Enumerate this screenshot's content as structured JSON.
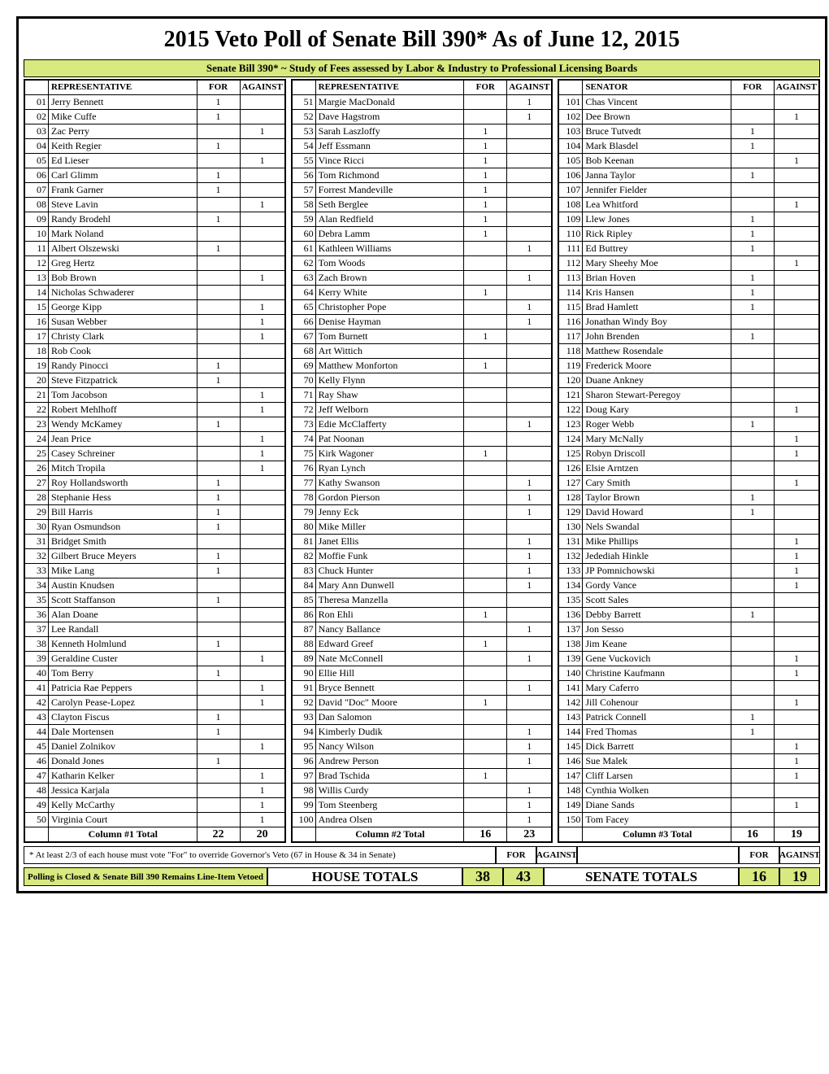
{
  "title": "2015 Veto Poll of Senate Bill 390* As of June 12, 2015",
  "subtitle": "Senate Bill 390*  ~  Study of Fees assessed by Labor & Industry to Professional Licensing Boards",
  "headers": {
    "rep": "REPRESENTATIVE",
    "sen": "SENATOR",
    "for": "FOR",
    "against": "AGAINST"
  },
  "col1": {
    "rows": [
      {
        "n": "01",
        "name": "Jerry Bennett",
        "f": "1",
        "a": ""
      },
      {
        "n": "02",
        "name": "Mike Cuffe",
        "f": "1",
        "a": ""
      },
      {
        "n": "03",
        "name": "Zac Perry",
        "f": "",
        "a": "1"
      },
      {
        "n": "04",
        "name": "Keith Regier",
        "f": "1",
        "a": ""
      },
      {
        "n": "05",
        "name": "Ed Lieser",
        "f": "",
        "a": "1"
      },
      {
        "n": "06",
        "name": "Carl Glimm",
        "f": "1",
        "a": ""
      },
      {
        "n": "07",
        "name": "Frank Garner",
        "f": "1",
        "a": ""
      },
      {
        "n": "08",
        "name": "Steve Lavin",
        "f": "",
        "a": "1"
      },
      {
        "n": "09",
        "name": "Randy Brodehl",
        "f": "1",
        "a": ""
      },
      {
        "n": "10",
        "name": "Mark Noland",
        "f": "",
        "a": ""
      },
      {
        "n": "11",
        "name": "Albert Olszewski",
        "f": "1",
        "a": ""
      },
      {
        "n": "12",
        "name": "Greg Hertz",
        "f": "",
        "a": ""
      },
      {
        "n": "13",
        "name": "Bob Brown",
        "f": "",
        "a": "1"
      },
      {
        "n": "14",
        "name": "Nicholas Schwaderer",
        "f": "",
        "a": ""
      },
      {
        "n": "15",
        "name": "George Kipp",
        "f": "",
        "a": "1"
      },
      {
        "n": "16",
        "name": "Susan Webber",
        "f": "",
        "a": "1"
      },
      {
        "n": "17",
        "name": "Christy Clark",
        "f": "",
        "a": "1"
      },
      {
        "n": "18",
        "name": "Rob Cook",
        "f": "",
        "a": ""
      },
      {
        "n": "19",
        "name": "Randy Pinocci",
        "f": "1",
        "a": ""
      },
      {
        "n": "20",
        "name": "Steve Fitzpatrick",
        "f": "1",
        "a": ""
      },
      {
        "n": "21",
        "name": "Tom Jacobson",
        "f": "",
        "a": "1"
      },
      {
        "n": "22",
        "name": "Robert Mehlhoff",
        "f": "",
        "a": "1"
      },
      {
        "n": "23",
        "name": "Wendy McKamey",
        "f": "1",
        "a": ""
      },
      {
        "n": "24",
        "name": "Jean Price",
        "f": "",
        "a": "1"
      },
      {
        "n": "25",
        "name": "Casey Schreiner",
        "f": "",
        "a": "1"
      },
      {
        "n": "26",
        "name": "Mitch Tropila",
        "f": "",
        "a": "1"
      },
      {
        "n": "27",
        "name": "Roy Hollandsworth",
        "f": "1",
        "a": ""
      },
      {
        "n": "28",
        "name": "Stephanie Hess",
        "f": "1",
        "a": ""
      },
      {
        "n": "29",
        "name": "Bill Harris",
        "f": "1",
        "a": ""
      },
      {
        "n": "30",
        "name": "Ryan Osmundson",
        "f": "1",
        "a": ""
      },
      {
        "n": "31",
        "name": "Bridget Smith",
        "f": "",
        "a": ""
      },
      {
        "n": "32",
        "name": "Gilbert Bruce Meyers",
        "f": "1",
        "a": ""
      },
      {
        "n": "33",
        "name": "Mike Lang",
        "f": "1",
        "a": ""
      },
      {
        "n": "34",
        "name": "Austin Knudsen",
        "f": "",
        "a": ""
      },
      {
        "n": "35",
        "name": "Scott Staffanson",
        "f": "1",
        "a": ""
      },
      {
        "n": "36",
        "name": "Alan Doane",
        "f": "",
        "a": ""
      },
      {
        "n": "37",
        "name": "Lee Randall",
        "f": "",
        "a": ""
      },
      {
        "n": "38",
        "name": "Kenneth Holmlund",
        "f": "1",
        "a": ""
      },
      {
        "n": "39",
        "name": "Geraldine Custer",
        "f": "",
        "a": "1"
      },
      {
        "n": "40",
        "name": "Tom Berry",
        "f": "1",
        "a": ""
      },
      {
        "n": "41",
        "name": "Patricia Rae Peppers",
        "f": "",
        "a": "1"
      },
      {
        "n": "42",
        "name": "Carolyn Pease-Lopez",
        "f": "",
        "a": "1"
      },
      {
        "n": "43",
        "name": "Clayton Fiscus",
        "f": "1",
        "a": ""
      },
      {
        "n": "44",
        "name": "Dale Mortensen",
        "f": "1",
        "a": ""
      },
      {
        "n": "45",
        "name": "Daniel Zolnikov",
        "f": "",
        "a": "1"
      },
      {
        "n": "46",
        "name": "Donald Jones",
        "f": "1",
        "a": ""
      },
      {
        "n": "47",
        "name": "Katharin Kelker",
        "f": "",
        "a": "1"
      },
      {
        "n": "48",
        "name": "Jessica Karjala",
        "f": "",
        "a": "1"
      },
      {
        "n": "49",
        "name": "Kelly McCarthy",
        "f": "",
        "a": "1"
      },
      {
        "n": "50",
        "name": "Virginia Court",
        "f": "",
        "a": "1"
      }
    ],
    "total_label": "Column #1 Total",
    "total_for": "22",
    "total_against": "20"
  },
  "col2": {
    "rows": [
      {
        "n": "51",
        "name": "Margie MacDonald",
        "f": "",
        "a": "1"
      },
      {
        "n": "52",
        "name": "Dave Hagstrom",
        "f": "",
        "a": "1"
      },
      {
        "n": "53",
        "name": "Sarah Laszloffy",
        "f": "1",
        "a": ""
      },
      {
        "n": "54",
        "name": "Jeff Essmann",
        "f": "1",
        "a": ""
      },
      {
        "n": "55",
        "name": "Vince Ricci",
        "f": "1",
        "a": ""
      },
      {
        "n": "56",
        "name": "Tom Richmond",
        "f": "1",
        "a": ""
      },
      {
        "n": "57",
        "name": "Forrest Mandeville",
        "f": "1",
        "a": ""
      },
      {
        "n": "58",
        "name": "Seth Berglee",
        "f": "1",
        "a": ""
      },
      {
        "n": "59",
        "name": "Alan Redfield",
        "f": "1",
        "a": ""
      },
      {
        "n": "60",
        "name": "Debra Lamm",
        "f": "1",
        "a": ""
      },
      {
        "n": "61",
        "name": "Kathleen Williams",
        "f": "",
        "a": "1"
      },
      {
        "n": "62",
        "name": "Tom Woods",
        "f": "",
        "a": ""
      },
      {
        "n": "63",
        "name": "Zach Brown",
        "f": "",
        "a": "1"
      },
      {
        "n": "64",
        "name": "Kerry White",
        "f": "1",
        "a": ""
      },
      {
        "n": "65",
        "name": "Christopher Pope",
        "f": "",
        "a": "1"
      },
      {
        "n": "66",
        "name": "Denise Hayman",
        "f": "",
        "a": "1"
      },
      {
        "n": "67",
        "name": "Tom Burnett",
        "f": "1",
        "a": ""
      },
      {
        "n": "68",
        "name": "Art Wittich",
        "f": "",
        "a": ""
      },
      {
        "n": "69",
        "name": "Matthew Monforton",
        "f": "1",
        "a": ""
      },
      {
        "n": "70",
        "name": "Kelly Flynn",
        "f": "",
        "a": ""
      },
      {
        "n": "71",
        "name": "Ray Shaw",
        "f": "",
        "a": ""
      },
      {
        "n": "72",
        "name": "Jeff Welborn",
        "f": "",
        "a": ""
      },
      {
        "n": "73",
        "name": "Edie McClafferty",
        "f": "",
        "a": "1"
      },
      {
        "n": "74",
        "name": "Pat Noonan",
        "f": "",
        "a": ""
      },
      {
        "n": "75",
        "name": "Kirk Wagoner",
        "f": "1",
        "a": ""
      },
      {
        "n": "76",
        "name": "Ryan Lynch",
        "f": "",
        "a": ""
      },
      {
        "n": "77",
        "name": "Kathy Swanson",
        "f": "",
        "a": "1"
      },
      {
        "n": "78",
        "name": "Gordon Pierson",
        "f": "",
        "a": "1"
      },
      {
        "n": "79",
        "name": "Jenny Eck",
        "f": "",
        "a": "1"
      },
      {
        "n": "80",
        "name": "Mike Miller",
        "f": "",
        "a": ""
      },
      {
        "n": "81",
        "name": "Janet Ellis",
        "f": "",
        "a": "1"
      },
      {
        "n": "82",
        "name": "Moffie Funk",
        "f": "",
        "a": "1"
      },
      {
        "n": "83",
        "name": "Chuck Hunter",
        "f": "",
        "a": "1"
      },
      {
        "n": "84",
        "name": "Mary Ann Dunwell",
        "f": "",
        "a": "1"
      },
      {
        "n": "85",
        "name": "Theresa Manzella",
        "f": "",
        "a": ""
      },
      {
        "n": "86",
        "name": "Ron Ehli",
        "f": "1",
        "a": ""
      },
      {
        "n": "87",
        "name": "Nancy Ballance",
        "f": "",
        "a": "1"
      },
      {
        "n": "88",
        "name": "Edward Greef",
        "f": "1",
        "a": ""
      },
      {
        "n": "89",
        "name": "Nate McConnell",
        "f": "",
        "a": "1"
      },
      {
        "n": "90",
        "name": "Ellie Hill",
        "f": "",
        "a": ""
      },
      {
        "n": "91",
        "name": "Bryce Bennett",
        "f": "",
        "a": "1"
      },
      {
        "n": "92",
        "name": "David \"Doc\" Moore",
        "f": "1",
        "a": ""
      },
      {
        "n": "93",
        "name": "Dan Salomon",
        "f": "",
        "a": ""
      },
      {
        "n": "94",
        "name": "Kimberly Dudik",
        "f": "",
        "a": "1"
      },
      {
        "n": "95",
        "name": "Nancy Wilson",
        "f": "",
        "a": "1"
      },
      {
        "n": "96",
        "name": "Andrew Person",
        "f": "",
        "a": "1"
      },
      {
        "n": "97",
        "name": "Brad Tschida",
        "f": "1",
        "a": ""
      },
      {
        "n": "98",
        "name": "Willis Curdy",
        "f": "",
        "a": "1"
      },
      {
        "n": "99",
        "name": "Tom Steenberg",
        "f": "",
        "a": "1"
      },
      {
        "n": "100",
        "name": "Andrea Olsen",
        "f": "",
        "a": "1"
      }
    ],
    "total_label": "Column #2 Total",
    "total_for": "16",
    "total_against": "23"
  },
  "col3": {
    "rows": [
      {
        "n": "101",
        "name": "Chas Vincent",
        "f": "",
        "a": ""
      },
      {
        "n": "102",
        "name": "Dee Brown",
        "f": "",
        "a": "1"
      },
      {
        "n": "103",
        "name": "Bruce Tutvedt",
        "f": "1",
        "a": ""
      },
      {
        "n": "104",
        "name": "Mark Blasdel",
        "f": "1",
        "a": ""
      },
      {
        "n": "105",
        "name": "Bob Keenan",
        "f": "",
        "a": "1"
      },
      {
        "n": "106",
        "name": "Janna Taylor",
        "f": "1",
        "a": ""
      },
      {
        "n": "107",
        "name": "Jennifer Fielder",
        "f": "",
        "a": ""
      },
      {
        "n": "108",
        "name": "Lea Whitford",
        "f": "",
        "a": "1"
      },
      {
        "n": "109",
        "name": "Llew Jones",
        "f": "1",
        "a": ""
      },
      {
        "n": "110",
        "name": "Rick Ripley",
        "f": "1",
        "a": ""
      },
      {
        "n": "111",
        "name": "Ed Buttrey",
        "f": "1",
        "a": ""
      },
      {
        "n": "112",
        "name": "Mary Sheehy Moe",
        "f": "",
        "a": "1"
      },
      {
        "n": "113",
        "name": "Brian Hoven",
        "f": "1",
        "a": ""
      },
      {
        "n": "114",
        "name": "Kris Hansen",
        "f": "1",
        "a": ""
      },
      {
        "n": "115",
        "name": "Brad Hamlett",
        "f": "1",
        "a": ""
      },
      {
        "n": "116",
        "name": "Jonathan Windy Boy",
        "f": "",
        "a": ""
      },
      {
        "n": "117",
        "name": "John Brenden",
        "f": "1",
        "a": ""
      },
      {
        "n": "118",
        "name": "Matthew Rosendale",
        "f": "",
        "a": ""
      },
      {
        "n": "119",
        "name": "Frederick Moore",
        "f": "",
        "a": ""
      },
      {
        "n": "120",
        "name": "Duane Ankney",
        "f": "",
        "a": ""
      },
      {
        "n": "121",
        "name": "Sharon Stewart-Peregoy",
        "f": "",
        "a": ""
      },
      {
        "n": "122",
        "name": "Doug Kary",
        "f": "",
        "a": "1"
      },
      {
        "n": "123",
        "name": "Roger Webb",
        "f": "1",
        "a": ""
      },
      {
        "n": "124",
        "name": "Mary McNally",
        "f": "",
        "a": "1"
      },
      {
        "n": "125",
        "name": "Robyn Driscoll",
        "f": "",
        "a": "1"
      },
      {
        "n": "126",
        "name": "Elsie Arntzen",
        "f": "",
        "a": ""
      },
      {
        "n": "127",
        "name": "Cary Smith",
        "f": "",
        "a": "1"
      },
      {
        "n": "128",
        "name": "Taylor Brown",
        "f": "1",
        "a": ""
      },
      {
        "n": "129",
        "name": "David Howard",
        "f": "1",
        "a": ""
      },
      {
        "n": "130",
        "name": "Nels Swandal",
        "f": "",
        "a": ""
      },
      {
        "n": "131",
        "name": "Mike Phillips",
        "f": "",
        "a": "1"
      },
      {
        "n": "132",
        "name": "Jedediah Hinkle",
        "f": "",
        "a": "1"
      },
      {
        "n": "133",
        "name": "JP Pomnichowski",
        "f": "",
        "a": "1"
      },
      {
        "n": "134",
        "name": "Gordy Vance",
        "f": "",
        "a": "1"
      },
      {
        "n": "135",
        "name": "Scott Sales",
        "f": "",
        "a": ""
      },
      {
        "n": "136",
        "name": "Debby Barrett",
        "f": "1",
        "a": ""
      },
      {
        "n": "137",
        "name": "Jon Sesso",
        "f": "",
        "a": ""
      },
      {
        "n": "138",
        "name": "Jim Keane",
        "f": "",
        "a": ""
      },
      {
        "n": "139",
        "name": "Gene Vuckovich",
        "f": "",
        "a": "1"
      },
      {
        "n": "140",
        "name": "Christine Kaufmann",
        "f": "",
        "a": "1"
      },
      {
        "n": "141",
        "name": "Mary Caferro",
        "f": "",
        "a": ""
      },
      {
        "n": "142",
        "name": "Jill Cohenour",
        "f": "",
        "a": "1"
      },
      {
        "n": "143",
        "name": "Patrick Connell",
        "f": "1",
        "a": ""
      },
      {
        "n": "144",
        "name": "Fred Thomas",
        "f": "1",
        "a": ""
      },
      {
        "n": "145",
        "name": "Dick Barrett",
        "f": "",
        "a": "1"
      },
      {
        "n": "146",
        "name": "Sue Malek",
        "f": "",
        "a": "1"
      },
      {
        "n": "147",
        "name": "Cliff Larsen",
        "f": "",
        "a": "1"
      },
      {
        "n": "148",
        "name": "Cynthia Wolken",
        "f": "",
        "a": ""
      },
      {
        "n": "149",
        "name": "Diane Sands",
        "f": "",
        "a": "1"
      },
      {
        "n": "150",
        "name": "Tom Facey",
        "f": "",
        "a": ""
      }
    ],
    "total_label": "Column #3 Total",
    "total_for": "16",
    "total_against": "19"
  },
  "footnote": "* At least 2/3 of each house must vote \"For\" to override Governor's Veto (67 in House & 34 in Senate)",
  "poll_status": "Polling is Closed & Senate Bill 390 Remains Line-Item Vetoed",
  "house_totals_label": "HOUSE TOTALS",
  "house_for": "38",
  "house_against": "43",
  "senate_totals_label": "SENATE TOTALS",
  "senate_for": "16",
  "senate_against": "19"
}
